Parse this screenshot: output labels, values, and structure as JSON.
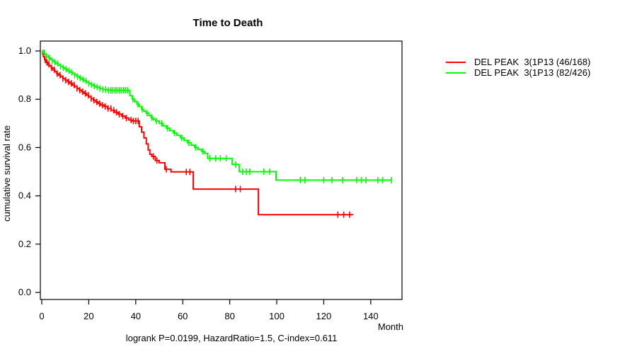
{
  "title": "Time to Death",
  "footer": "logrank P=0.0199, HazardRatio=1.5, C-index=0.611",
  "axis_labels": {
    "x": "Month",
    "y": "cumulative survival rate"
  },
  "colors": {
    "series_red": "#ff0000",
    "series_green": "#00ff00",
    "axis": "#000000"
  },
  "chart_data": {
    "type": "line",
    "subtype": "kaplan-meier-step",
    "title": "Time to Death",
    "xlabel": "Month",
    "ylabel": "cumulative survival rate",
    "annotation": "logrank P=0.0199, HazardRatio=1.5, C-index=0.611",
    "xlim": [
      0,
      153
    ],
    "ylim": [
      0.0,
      1.0
    ],
    "x_ticks": [
      0,
      20,
      40,
      60,
      80,
      100,
      120,
      140
    ],
    "y_ticks": [
      0.0,
      0.2,
      0.4,
      0.6,
      0.8,
      1.0
    ],
    "grid": false,
    "legend_position": "right-outside",
    "series": [
      {
        "name": "DEL PEAK  3(1P13 (46/168)",
        "color": "#ff0000",
        "end": 132.5,
        "steps": [
          [
            0,
            1.0
          ],
          [
            0.4,
            0.988
          ],
          [
            0.8,
            0.976
          ],
          [
            1.2,
            0.964
          ],
          [
            1.8,
            0.952
          ],
          [
            2.5,
            0.945
          ],
          [
            3.2,
            0.938
          ],
          [
            4,
            0.93
          ],
          [
            4.8,
            0.922
          ],
          [
            5.6,
            0.914
          ],
          [
            6.4,
            0.906
          ],
          [
            7.2,
            0.9
          ],
          [
            8,
            0.893
          ],
          [
            9,
            0.886
          ],
          [
            10,
            0.879
          ],
          [
            11,
            0.872
          ],
          [
            12,
            0.866
          ],
          [
            13,
            0.859
          ],
          [
            14,
            0.852
          ],
          [
            15,
            0.845
          ],
          [
            16,
            0.838
          ],
          [
            17,
            0.831
          ],
          [
            18,
            0.824
          ],
          [
            19,
            0.817
          ],
          [
            20,
            0.81
          ],
          [
            21,
            0.803
          ],
          [
            22,
            0.796
          ],
          [
            23,
            0.789
          ],
          [
            24,
            0.782
          ],
          [
            25,
            0.776
          ],
          [
            26.5,
            0.77
          ],
          [
            28,
            0.762
          ],
          [
            29.5,
            0.754
          ],
          [
            31,
            0.746
          ],
          [
            32.5,
            0.738
          ],
          [
            34,
            0.73
          ],
          [
            35.5,
            0.722
          ],
          [
            37,
            0.714
          ],
          [
            38.5,
            0.71
          ],
          [
            41.5,
            0.686
          ],
          [
            42.5,
            0.664
          ],
          [
            43.5,
            0.64
          ],
          [
            44.5,
            0.615
          ],
          [
            45.3,
            0.59
          ],
          [
            46,
            0.572
          ],
          [
            46.8,
            0.563
          ],
          [
            48.3,
            0.546
          ],
          [
            50,
            0.537
          ],
          [
            52.4,
            0.51
          ],
          [
            55,
            0.499
          ],
          [
            64.5,
            0.428
          ],
          [
            92.2,
            0.322
          ]
        ],
        "censors": [
          0.6,
          1.4,
          2.2,
          3,
          4.2,
          5.4,
          6.6,
          7.8,
          9,
          10.2,
          11.4,
          12.6,
          13.8,
          15,
          16.2,
          17.4,
          18.6,
          19.8,
          21,
          22.2,
          23.4,
          24.6,
          25.8,
          27,
          28.2,
          29.4,
          30.6,
          31.8,
          33,
          34.5,
          36,
          38,
          39,
          40,
          41,
          47.5,
          49,
          53,
          61.5,
          63,
          82.5,
          84.5,
          126,
          128.5,
          131
        ]
      },
      {
        "name": "DEL PEAK  3(1P13 (82/426)",
        "color": "#00ff00",
        "end": 148.8,
        "steps": [
          [
            0,
            1.0
          ],
          [
            0.5,
            0.993
          ],
          [
            1.2,
            0.986
          ],
          [
            2,
            0.979
          ],
          [
            2.8,
            0.972
          ],
          [
            3.6,
            0.966
          ],
          [
            4.4,
            0.96
          ],
          [
            5.2,
            0.954
          ],
          [
            6,
            0.948
          ],
          [
            7,
            0.942
          ],
          [
            8,
            0.936
          ],
          [
            9,
            0.93
          ],
          [
            10,
            0.924
          ],
          [
            11,
            0.918
          ],
          [
            12,
            0.912
          ],
          [
            13,
            0.906
          ],
          [
            14,
            0.9
          ],
          [
            15,
            0.894
          ],
          [
            16,
            0.888
          ],
          [
            17,
            0.882
          ],
          [
            18,
            0.876
          ],
          [
            19,
            0.87
          ],
          [
            20,
            0.865
          ],
          [
            21,
            0.86
          ],
          [
            22,
            0.855
          ],
          [
            23,
            0.85
          ],
          [
            24.5,
            0.845
          ],
          [
            26,
            0.84
          ],
          [
            28,
            0.837
          ],
          [
            37.5,
            0.815
          ],
          [
            38.5,
            0.8
          ],
          [
            39.5,
            0.79
          ],
          [
            40.5,
            0.78
          ],
          [
            41.5,
            0.77
          ],
          [
            42.5,
            0.758
          ],
          [
            43.5,
            0.75
          ],
          [
            44.5,
            0.742
          ],
          [
            45.5,
            0.733
          ],
          [
            46.5,
            0.724
          ],
          [
            47.5,
            0.716
          ],
          [
            48.5,
            0.71
          ],
          [
            50,
            0.7
          ],
          [
            51.5,
            0.69
          ],
          [
            53,
            0.68
          ],
          [
            54.5,
            0.67
          ],
          [
            56,
            0.66
          ],
          [
            57.5,
            0.65
          ],
          [
            59,
            0.64
          ],
          [
            60.5,
            0.63
          ],
          [
            62,
            0.62
          ],
          [
            63.5,
            0.61
          ],
          [
            65,
            0.6
          ],
          [
            66.5,
            0.592
          ],
          [
            68,
            0.584
          ],
          [
            69.3,
            0.576
          ],
          [
            70.6,
            0.555
          ],
          [
            81,
            0.53
          ],
          [
            84,
            0.5
          ],
          [
            99.7,
            0.465
          ]
        ],
        "censors": [
          1,
          2,
          3.2,
          4.4,
          5.6,
          6.8,
          8,
          9.2,
          10.4,
          11.6,
          12.8,
          14,
          15.2,
          16.4,
          17.6,
          18.8,
          20,
          21.2,
          22.4,
          23.6,
          24.8,
          26,
          27.2,
          28.4,
          29.3,
          30.2,
          31.1,
          32,
          32.9,
          33.8,
          34.7,
          35.6,
          36.5,
          38.8,
          40.8,
          42.8,
          44.8,
          46.8,
          48.8,
          51,
          53.5,
          56.5,
          59.5,
          62.5,
          65.5,
          68.5,
          71.5,
          74,
          76,
          78.5,
          82.5,
          85.5,
          87,
          88.5,
          94.5,
          97,
          110,
          112,
          120,
          123.5,
          128,
          134,
          136,
          138,
          143,
          145,
          148.8
        ]
      }
    ]
  }
}
